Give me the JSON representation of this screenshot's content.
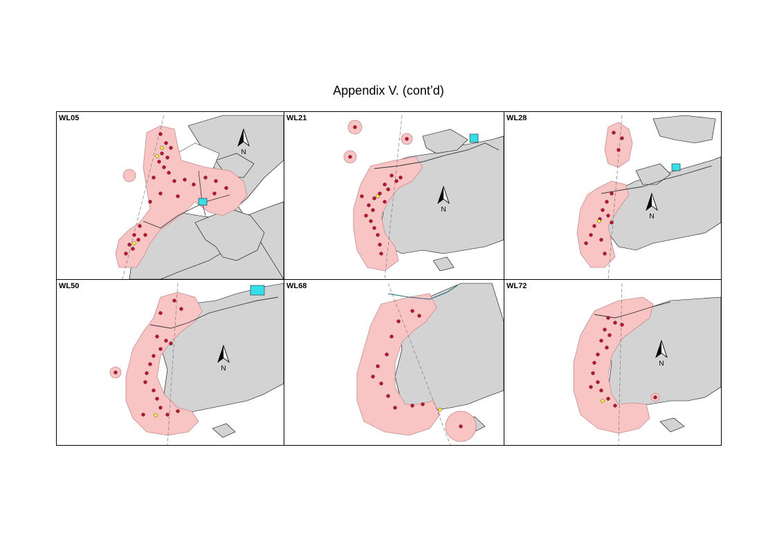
{
  "page": {
    "title": "Appendix V.  (cont’d)"
  },
  "colors": {
    "land": "#d3d3d3",
    "range": "#f8c4c4",
    "range_outline": "#c98a8a",
    "location_point": "#c8102e",
    "highlight_point": "#ffff33",
    "water_feature": "#33e0ea",
    "track_line": "#777777"
  },
  "north_arrow": {
    "label": "N"
  },
  "panels": [
    {
      "id": "WL05",
      "label": "WL05"
    },
    {
      "id": "WL21",
      "label": "WL21"
    },
    {
      "id": "WL28",
      "label": "WL28"
    },
    {
      "id": "WL50",
      "label": "WL50"
    },
    {
      "id": "WL68",
      "label": "WL68"
    },
    {
      "id": "WL72",
      "label": "WL72"
    }
  ]
}
